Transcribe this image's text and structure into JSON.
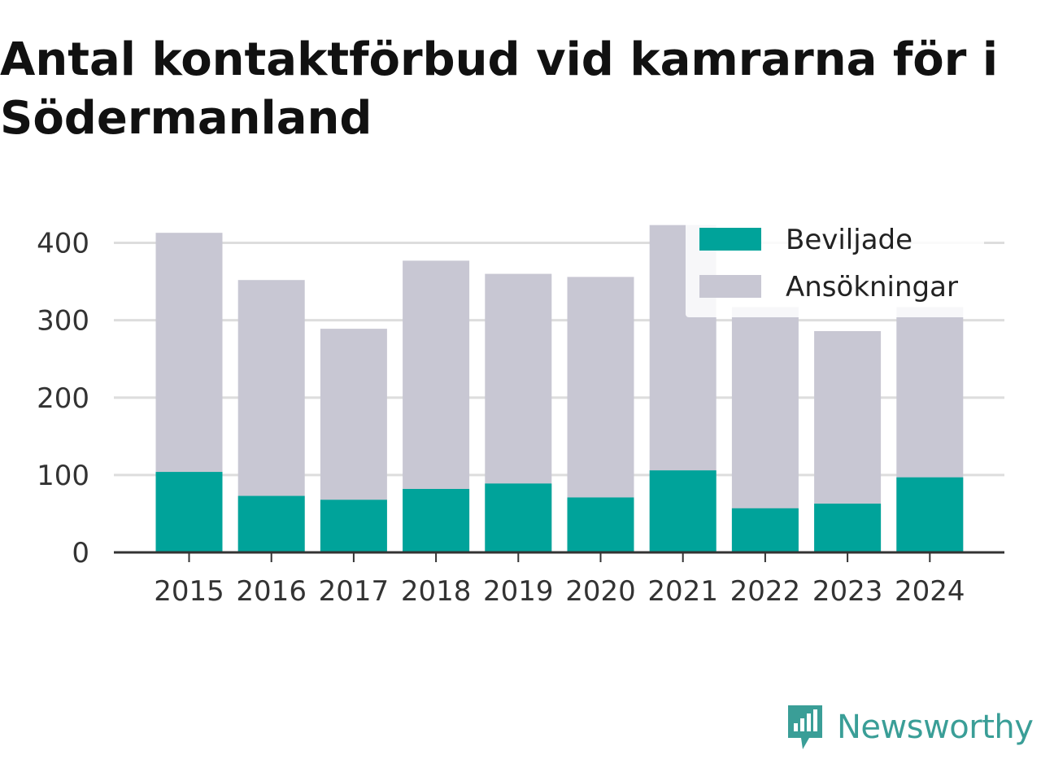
{
  "title": "Antal kontaktförbud vid kamrarna för i Södermanland",
  "brand": {
    "name": "Newsworthy",
    "icon": "newsworthy-logo-icon",
    "color": "#3a9e97"
  },
  "colors": {
    "granted": "#00a39a",
    "applications": "#c8c7d3",
    "grid": "#dddddd",
    "axis": "#333333"
  },
  "chart_data": {
    "type": "bar",
    "stacked": "overlay",
    "categories": [
      "2015",
      "2016",
      "2017",
      "2018",
      "2019",
      "2020",
      "2021",
      "2022",
      "2023",
      "2024"
    ],
    "series": [
      {
        "name": "Beviljade",
        "values": [
          104,
          73,
          68,
          82,
          89,
          71,
          106,
          57,
          63,
          97
        ]
      },
      {
        "name": "Ansökningar",
        "values": [
          413,
          352,
          289,
          377,
          360,
          356,
          423,
          317,
          286,
          317
        ]
      }
    ],
    "title": "Antal kontaktförbud vid kamrarna för i Södermanland",
    "xlabel": "",
    "ylabel": "",
    "ylim": [
      0,
      430
    ],
    "yticks": [
      0,
      100,
      200,
      300,
      400
    ],
    "grid": true,
    "legend": "top-right"
  }
}
